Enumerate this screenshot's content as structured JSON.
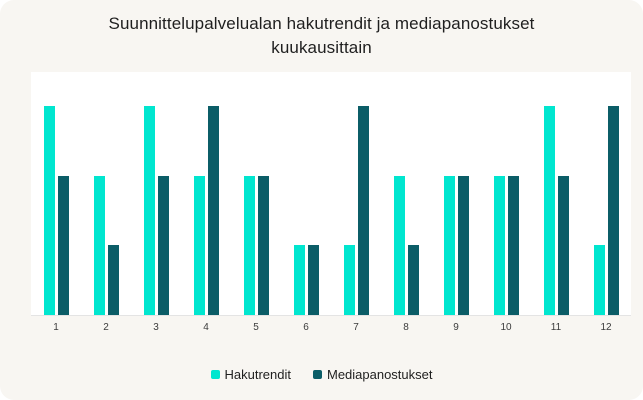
{
  "title": "Suunnittelupalvelualan hakutrendit ja mediapanostukset kuukausittain",
  "chart_data": {
    "type": "bar",
    "title": "Suunnittelupalvelualan hakutrendit ja mediapanostukset kuukausittain",
    "categories": [
      "1",
      "2",
      "3",
      "4",
      "5",
      "6",
      "7",
      "8",
      "9",
      "10",
      "11",
      "12"
    ],
    "series": [
      {
        "name": "Hakutrendit",
        "color": "#00e6cf",
        "values": [
          3,
          2,
          3,
          2,
          2,
          1,
          1,
          2,
          2,
          2,
          3,
          1
        ]
      },
      {
        "name": "Mediapanostukset",
        "color": "#0b5d67",
        "values": [
          2,
          1,
          2,
          3,
          2,
          1,
          3,
          1,
          2,
          2,
          2,
          3
        ]
      }
    ],
    "xlabel": "",
    "ylabel": "",
    "ylim": [
      0,
      3.5
    ],
    "grid": false,
    "legend_position": "bottom",
    "y_axis_visible": false
  },
  "colors": {
    "card_bg": "#f8f6f2",
    "plot_bg": "#ffffff",
    "axis_line": "#e4e4e4",
    "text": "#1f1f1f",
    "tick_text": "#3c3c3c"
  }
}
